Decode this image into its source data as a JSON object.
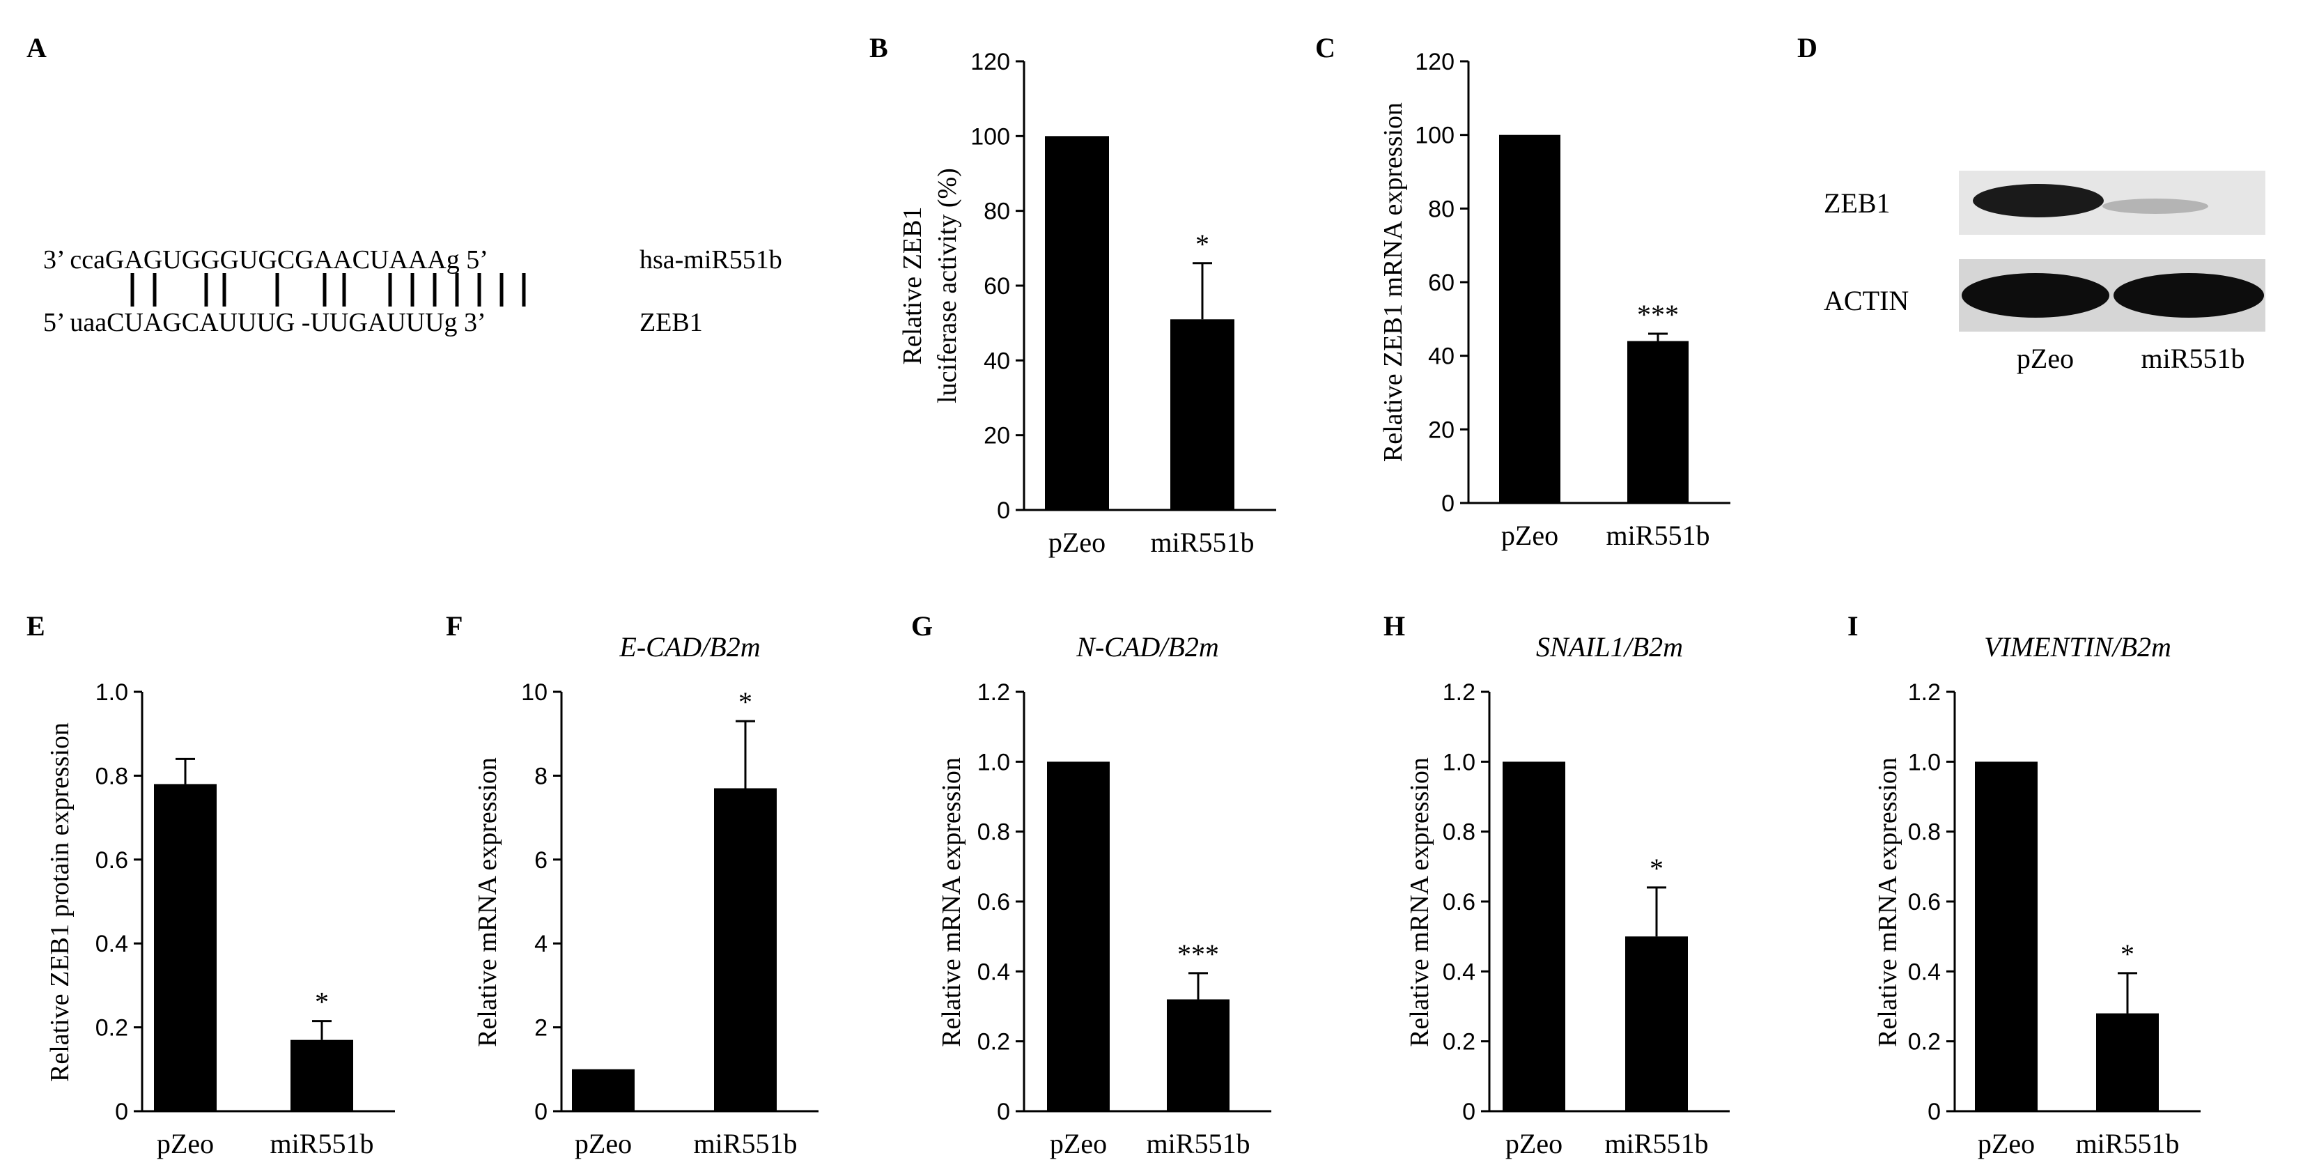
{
  "panel_a": {
    "letter": "A",
    "mirna_seq": "3’ ccaGAGUGGGUGCGAACUAAAg 5’",
    "mirna_name": "hsa-miR551b",
    "target_seq": "5’ uaaCUAGCAUUUG -UUGAUUUg 3’",
    "target_name": "ZEB1"
  },
  "panel_d": {
    "letter": "D",
    "rows": [
      "ZEB1",
      "ACTIN"
    ],
    "lanes": [
      "pZeo",
      "miR551b"
    ]
  },
  "chart_data": [
    {
      "letter": "B",
      "type": "bar",
      "title": "",
      "ylabel_lines": [
        "Relative ZEB1",
        "luciferase activity (%)"
      ],
      "categories": [
        "pZeo",
        "miR551b"
      ],
      "values": [
        100,
        51
      ],
      "errors": [
        0,
        15
      ],
      "significance": [
        "",
        "*"
      ],
      "ylim": [
        0,
        120
      ],
      "yticks": [
        "0",
        "20",
        "40",
        "60",
        "80",
        "100",
        "120"
      ]
    },
    {
      "letter": "C",
      "type": "bar",
      "title": "",
      "ylabel_lines": [
        "Relative ZEB1 mRNA expression"
      ],
      "categories": [
        "pZeo",
        "miR551b"
      ],
      "values": [
        100,
        44
      ],
      "errors": [
        0,
        2
      ],
      "significance": [
        "",
        "***"
      ],
      "ylim": [
        0,
        120
      ],
      "yticks": [
        "0",
        "20",
        "40",
        "60",
        "80",
        "100",
        "120"
      ]
    },
    {
      "letter": "E",
      "type": "bar",
      "title": "",
      "ylabel_lines": [
        "Relative ZEB1 protain expression"
      ],
      "categories": [
        "pZeo",
        "miR551b"
      ],
      "values": [
        0.78,
        0.17
      ],
      "errors": [
        0.06,
        0.045
      ],
      "significance": [
        "",
        "*"
      ],
      "ylim": [
        0,
        1.0
      ],
      "yticks": [
        "0",
        "0.2",
        "0.4",
        "0.6",
        "0.8",
        "1.0"
      ]
    },
    {
      "letter": "F",
      "type": "bar",
      "title": "E-CAD/B2m",
      "ylabel_lines": [
        "Relative mRNA expression"
      ],
      "categories": [
        "pZeo",
        "miR551b"
      ],
      "values": [
        1.0,
        7.7
      ],
      "errors": [
        0,
        1.6
      ],
      "significance": [
        "",
        "*"
      ],
      "ylim": [
        0,
        10
      ],
      "yticks": [
        "0",
        "2",
        "4",
        "6",
        "8",
        "10"
      ]
    },
    {
      "letter": "G",
      "type": "bar",
      "title": "N-CAD/B2m",
      "ylabel_lines": [
        "Relative mRNA expression"
      ],
      "categories": [
        "pZeo",
        "miR551b"
      ],
      "values": [
        1.0,
        0.32
      ],
      "errors": [
        0,
        0.075
      ],
      "significance": [
        "",
        "***"
      ],
      "ylim": [
        0,
        1.2
      ],
      "yticks": [
        "0",
        "0.2",
        "0.4",
        "0.6",
        "0.8",
        "1.0",
        "1.2"
      ]
    },
    {
      "letter": "H",
      "type": "bar",
      "title": "SNAIL1/B2m",
      "ylabel_lines": [
        "Relative mRNA expression"
      ],
      "categories": [
        "pZeo",
        "miR551b"
      ],
      "values": [
        1.0,
        0.5
      ],
      "errors": [
        0,
        0.14
      ],
      "significance": [
        "",
        "*"
      ],
      "ylim": [
        0,
        1.2
      ],
      "yticks": [
        "0",
        "0.2",
        "0.4",
        "0.6",
        "0.8",
        "1.0",
        "1.2"
      ]
    },
    {
      "letter": "I",
      "type": "bar",
      "title": "VIMENTIN/B2m",
      "ylabel_lines": [
        "Relative mRNA expression"
      ],
      "categories": [
        "pZeo",
        "miR551b"
      ],
      "values": [
        1.0,
        0.28
      ],
      "errors": [
        0,
        0.115
      ],
      "significance": [
        "",
        "*"
      ],
      "ylim": [
        0,
        1.2
      ],
      "yticks": [
        "0",
        "0.2",
        "0.4",
        "0.6",
        "0.8",
        "1.0",
        "1.2"
      ]
    }
  ]
}
